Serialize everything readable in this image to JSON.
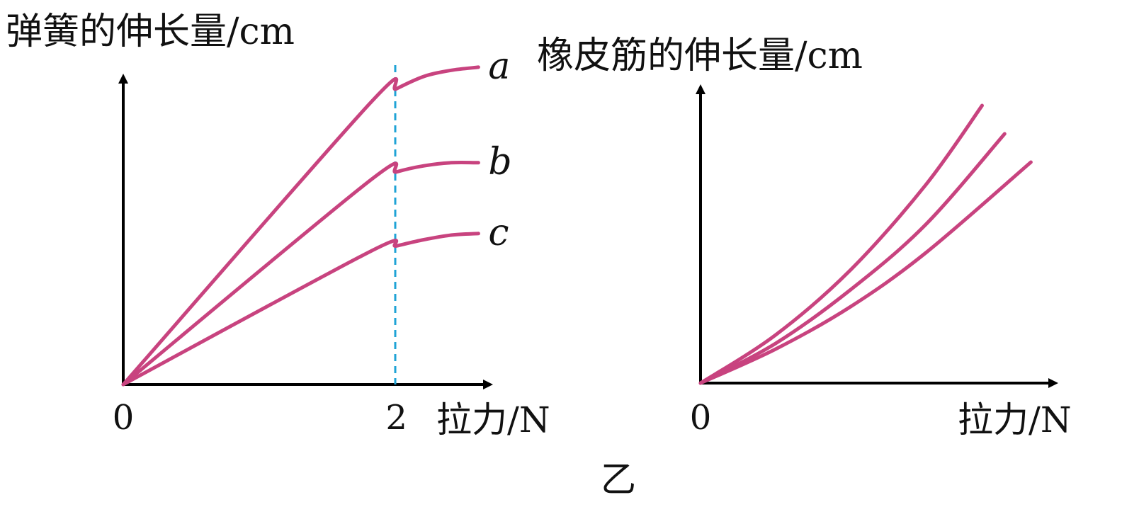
{
  "colors": {
    "curve": "#C8437F",
    "axis": "#000000",
    "guide": "#1FA3D6"
  },
  "figure_caption": "乙",
  "chart_data": [
    {
      "type": "line",
      "title": "",
      "ylabel": "弹簧的伸长量/cm",
      "xlabel": "拉力/N",
      "x_ticks": [
        "0",
        "2"
      ],
      "xlim": [
        0,
        2.8
      ],
      "ylim": [
        0,
        10
      ],
      "grid": false,
      "legend": "none",
      "guide_line_x": 2,
      "series": [
        {
          "name": "a",
          "x": [
            0,
            1.8,
            2.0,
            2.2,
            2.4,
            2.6
          ],
          "y": [
            0,
            9.1,
            9.6,
            10.0,
            10.2,
            10.3
          ]
        },
        {
          "name": "b",
          "x": [
            0,
            1.8,
            2.0,
            2.2,
            2.4,
            2.6
          ],
          "y": [
            0,
            6.6,
            6.9,
            7.1,
            7.2,
            7.2
          ]
        },
        {
          "name": "c",
          "x": [
            0,
            1.8,
            2.0,
            2.2,
            2.4,
            2.6
          ],
          "y": [
            0,
            4.3,
            4.5,
            4.7,
            4.85,
            4.9
          ]
        }
      ]
    },
    {
      "type": "line",
      "title": "",
      "ylabel": "橡皮筋的伸长量/cm",
      "xlabel": "拉力/N",
      "x_ticks": [
        "0"
      ],
      "xlim": [
        0,
        10
      ],
      "ylim": [
        0,
        10
      ],
      "grid": false,
      "legend": "none",
      "series": [
        {
          "x": [
            0,
            2,
            4,
            6,
            7.5
          ],
          "y": [
            0,
            1.7,
            4.0,
            7.0,
            9.8
          ]
        },
        {
          "x": [
            0,
            2,
            4,
            6,
            8.1
          ],
          "y": [
            0,
            1.4,
            3.3,
            5.6,
            8.8
          ]
        },
        {
          "x": [
            0,
            2,
            4,
            6,
            8.8
          ],
          "y": [
            0,
            1.2,
            2.7,
            4.6,
            7.8
          ]
        }
      ]
    }
  ]
}
